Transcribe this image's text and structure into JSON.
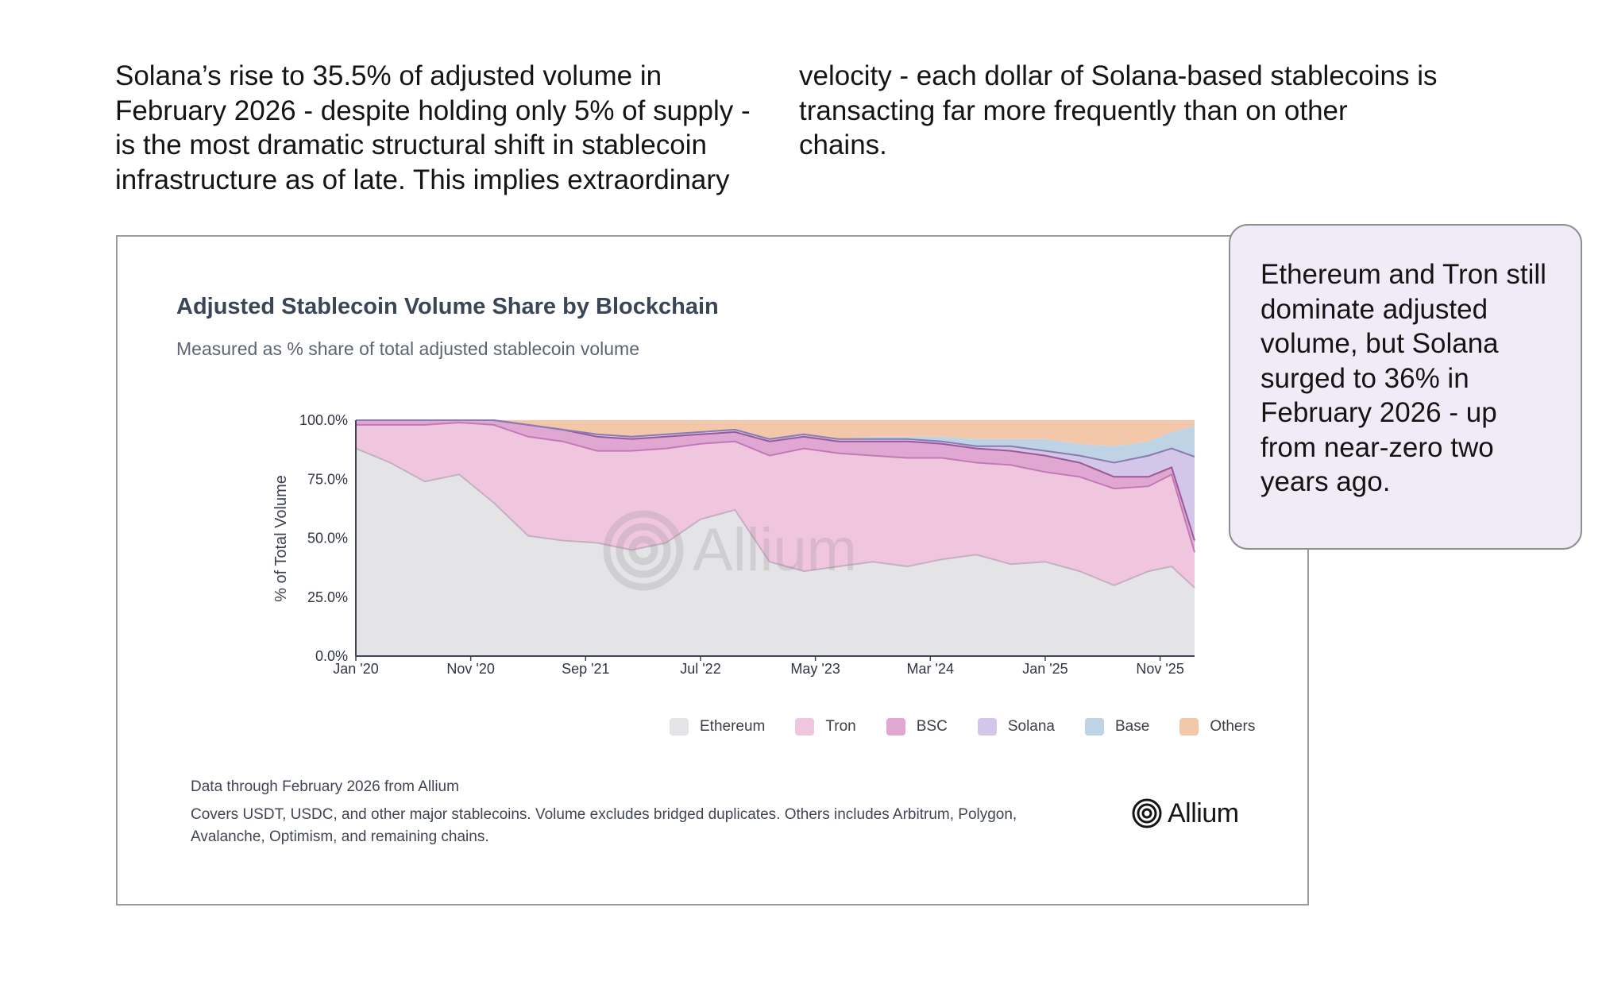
{
  "intro": {
    "left_text": "Solana’s rise to 35.5% of adjusted volume in February 2026 - despite holding only 5% of supply - is the most dramatic structural shift in stablecoin infrastructure as of late. This implies extraordinary",
    "right_text": "velocity - each dollar of Solana-based stablecoins is transacting far more frequently than on other chains."
  },
  "callout": {
    "text": "Ethereum and Tron still dominate adjusted volume, but Solana surged to 36% in February 2026 - up from near-zero two years ago."
  },
  "footer": {
    "source": "Data through February 2026 from Allium",
    "note": "Covers USDT, USDC, and other major stablecoins. Volume excludes bridged duplicates. Others includes Arbitrum, Polygon, Avalanche, Optimism, and remaining chains."
  },
  "branding": {
    "logo_text": "Allium",
    "watermark_text": "Allium"
  },
  "chart_data": {
    "type": "area",
    "stacked": true,
    "title": "Adjusted Stablecoin Volume Share by Blockchain",
    "subtitle": "Measured as % share of total adjusted stablecoin volume",
    "xlabel": "",
    "ylabel": "% of Total Volume",
    "ylim": [
      0,
      100
    ],
    "y_ticks": [
      "0.0%",
      "25.0%",
      "50.0%",
      "75.0%",
      "100.0%"
    ],
    "y_tick_values": [
      0,
      25,
      50,
      75,
      100
    ],
    "x_ticks": [
      "Jan '20",
      "Nov '20",
      "Sep '21",
      "Jul '22",
      "May '23",
      "Mar '24",
      "Jan '25",
      "Nov '25"
    ],
    "x_tick_index": [
      0,
      10,
      20,
      30,
      40,
      50,
      60,
      70
    ],
    "x_range": [
      0,
      73
    ],
    "grid": true,
    "legend_position": "bottom-right",
    "x": [
      0,
      3,
      6,
      9,
      12,
      15,
      18,
      21,
      24,
      27,
      30,
      33,
      36,
      39,
      42,
      45,
      48,
      51,
      54,
      57,
      60,
      63,
      66,
      69,
      71,
      73
    ],
    "series": [
      {
        "name": "Ethereum",
        "color": "#e4e4e6",
        "values": [
          88,
          82,
          74,
          77,
          65,
          51,
          49,
          48,
          45,
          48,
          58,
          62,
          40,
          36,
          38,
          40,
          38,
          41,
          43,
          39,
          40,
          36,
          30,
          36,
          38,
          29
        ]
      },
      {
        "name": "Tron",
        "color": "#f0c6df",
        "values": [
          10,
          16,
          24,
          22,
          33,
          42,
          42,
          39,
          42,
          40,
          32,
          29,
          45,
          52,
          48,
          45,
          46,
          43,
          39,
          42,
          38,
          40,
          41,
          36,
          39,
          15
        ]
      },
      {
        "name": "BSC",
        "color": "#dfa7d2",
        "values": [
          2,
          2,
          2,
          1,
          2,
          5,
          5,
          6,
          5,
          5,
          4,
          4,
          6,
          5,
          5,
          6,
          7,
          6,
          6,
          6,
          7,
          6,
          5,
          4,
          3,
          5
        ]
      },
      {
        "name": "Solana",
        "color": "#d3c6e8",
        "values": [
          0,
          0,
          0,
          0,
          0,
          0,
          0,
          1,
          1,
          1,
          1,
          1,
          1,
          1,
          1,
          1,
          1,
          1,
          1,
          2,
          2,
          3,
          6,
          9,
          8,
          35.5
        ]
      },
      {
        "name": "Base",
        "color": "#bed3e3",
        "values": [
          0,
          0,
          0,
          0,
          0,
          0,
          0,
          0,
          0,
          0,
          0,
          0,
          0,
          0,
          0,
          1,
          1,
          2,
          3,
          3,
          5,
          5,
          7,
          6,
          7,
          13
        ]
      },
      {
        "name": "Others",
        "color": "#f3c8aa",
        "values": [
          0,
          0,
          0,
          0,
          0,
          2,
          4,
          6,
          7,
          6,
          5,
          4,
          8,
          6,
          8,
          7,
          7,
          7,
          8,
          8,
          8,
          10,
          11,
          9,
          5,
          2.5
        ]
      }
    ]
  }
}
